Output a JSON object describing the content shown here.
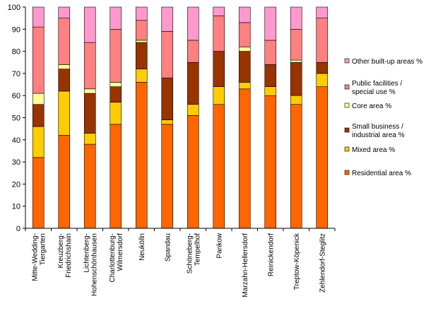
{
  "chart_data": {
    "type": "bar",
    "stacked": true,
    "ylim": [
      0,
      100
    ],
    "yticks": [
      0,
      10,
      20,
      30,
      40,
      50,
      60,
      70,
      80,
      90,
      100
    ],
    "grid": false,
    "legend_position": "right",
    "categories": [
      [
        "Mitte-Wedding-",
        "Tiergarten"
      ],
      [
        "Kreuzberg-",
        "Friedrichshain"
      ],
      [
        "Lichtenberg-",
        "Hohenschönhausen"
      ],
      [
        "Charlottenburg-",
        "Wilmersdorf"
      ],
      [
        "Neukölln"
      ],
      [
        "Spandau"
      ],
      [
        "Schöneberg-",
        "Tempelhof"
      ],
      [
        "Pankow"
      ],
      [
        "Marzahn-Hellersdorf"
      ],
      [
        "Reinickendorf"
      ],
      [
        "Treptow-Köpenick"
      ],
      [
        "Zehlendorf-Steglitz"
      ]
    ],
    "series": [
      {
        "name": "Residential area  %",
        "color": "#FF6600",
        "values": [
          32,
          42,
          38,
          47,
          66,
          47,
          51,
          56,
          63,
          60,
          56,
          64
        ]
      },
      {
        "name": "Mixed area %",
        "color": "#FFCC00",
        "values": [
          14,
          20,
          5,
          10,
          6,
          2,
          5,
          8,
          3,
          4,
          4,
          6
        ]
      },
      {
        "name": "Small business / industrial area %",
        "color": "#993300",
        "values": [
          10,
          10,
          18,
          7,
          12,
          19,
          19,
          16,
          14,
          10,
          15,
          5
        ]
      },
      {
        "name": "Core area %",
        "color": "#FFFF99",
        "values": [
          5,
          2,
          2,
          2,
          1,
          0,
          0,
          0,
          2,
          0,
          1,
          0
        ]
      },
      {
        "name": "Public facilities / special use %",
        "color": "#FF8080",
        "values": [
          30,
          21,
          21,
          24,
          9,
          21,
          10,
          16,
          11,
          11,
          14,
          20
        ]
      },
      {
        "name": "Other built-up areas %",
        "color": "#FF99CC",
        "values": [
          9,
          5,
          16,
          10,
          6,
          11,
          15,
          4,
          7,
          15,
          10,
          5
        ]
      }
    ],
    "legend": [
      {
        "series": 5,
        "lines": [
          "Other built-up areas %"
        ]
      },
      {
        "series": 4,
        "lines": [
          "Public facilities /",
          "special use %"
        ]
      },
      {
        "series": 3,
        "lines": [
          "Core area %"
        ]
      },
      {
        "series": 2,
        "lines": [
          "Small business /",
          "industrial area %"
        ]
      },
      {
        "series": 1,
        "lines": [
          "Mixed area %"
        ]
      },
      {
        "series": 0,
        "lines": [
          "Residential area  %"
        ]
      }
    ]
  }
}
